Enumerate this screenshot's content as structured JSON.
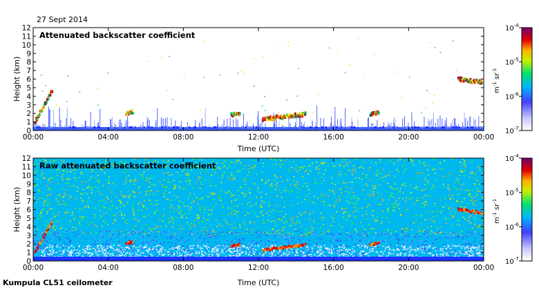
{
  "figure": {
    "date": "27 Sept 2014",
    "footer": "Kumpula CL51 ceilometer"
  },
  "chart_data": [
    {
      "type": "heatmap",
      "title": "Attenuated backscatter coefficient",
      "xlabel": "Time (UTC)",
      "ylabel": "Height (km)",
      "x_ticks": [
        "00:00",
        "04:00",
        "08:00",
        "12:00",
        "16:00",
        "20:00",
        "00:00"
      ],
      "x_range_hours": [
        0,
        24
      ],
      "y_ticks": [
        0,
        1,
        2,
        3,
        4,
        5,
        6,
        7,
        8,
        9,
        10,
        11,
        12
      ],
      "ylim_km": [
        0,
        12
      ],
      "colorbar": {
        "scale": "log",
        "range": [
          1e-07,
          0.0001
        ],
        "labels": [
          "10",
          "10",
          "10",
          "10"
        ],
        "exponents": [
          "-7",
          "-6",
          "-5",
          "-4"
        ],
        "unit": "m",
        "unit_exp": "-1",
        "unit2": "sr",
        "unit2_exp": "-1"
      },
      "features": {
        "surface_layer_top_km": 0.4,
        "cloud_layers": [
          {
            "t_start": 0.05,
            "t_end": 1.0,
            "h_start": 1.0,
            "h_end": 4.7
          },
          {
            "t_start": 4.9,
            "t_end": 5.3,
            "h_start": 2.0,
            "h_end": 2.2
          },
          {
            "t_start": 10.5,
            "t_end": 11.0,
            "h_start": 1.8,
            "h_end": 1.9
          },
          {
            "t_start": 12.2,
            "t_end": 14.5,
            "h_start": 1.3,
            "h_end": 1.9
          },
          {
            "t_start": 17.9,
            "t_end": 18.4,
            "h_start": 1.9,
            "h_end": 2.1
          },
          {
            "t_start": 22.6,
            "t_end": 23.9,
            "h_start": 6.0,
            "h_end": 5.6
          }
        ]
      }
    },
    {
      "type": "heatmap",
      "title": "Raw attenuated backscatter coefficient",
      "xlabel": "Time (UTC)",
      "ylabel": "Height (km)",
      "x_ticks": [
        "00:00",
        "04:00",
        "08:00",
        "12:00",
        "16:00",
        "20:00",
        "00:00"
      ],
      "x_range_hours": [
        0,
        24
      ],
      "y_ticks": [
        0,
        1,
        2,
        3,
        4,
        5,
        6,
        7,
        8,
        9,
        10,
        11,
        12
      ],
      "ylim_km": [
        0,
        12
      ],
      "colorbar": {
        "scale": "log",
        "range": [
          1e-07,
          0.0001
        ],
        "labels": [
          "10",
          "10",
          "10",
          "10"
        ],
        "exponents": [
          "-7",
          "-6",
          "-5",
          "-4"
        ],
        "unit": "m",
        "unit_exp": "-1",
        "unit2": "sr",
        "unit2_exp": "-1"
      }
    }
  ]
}
